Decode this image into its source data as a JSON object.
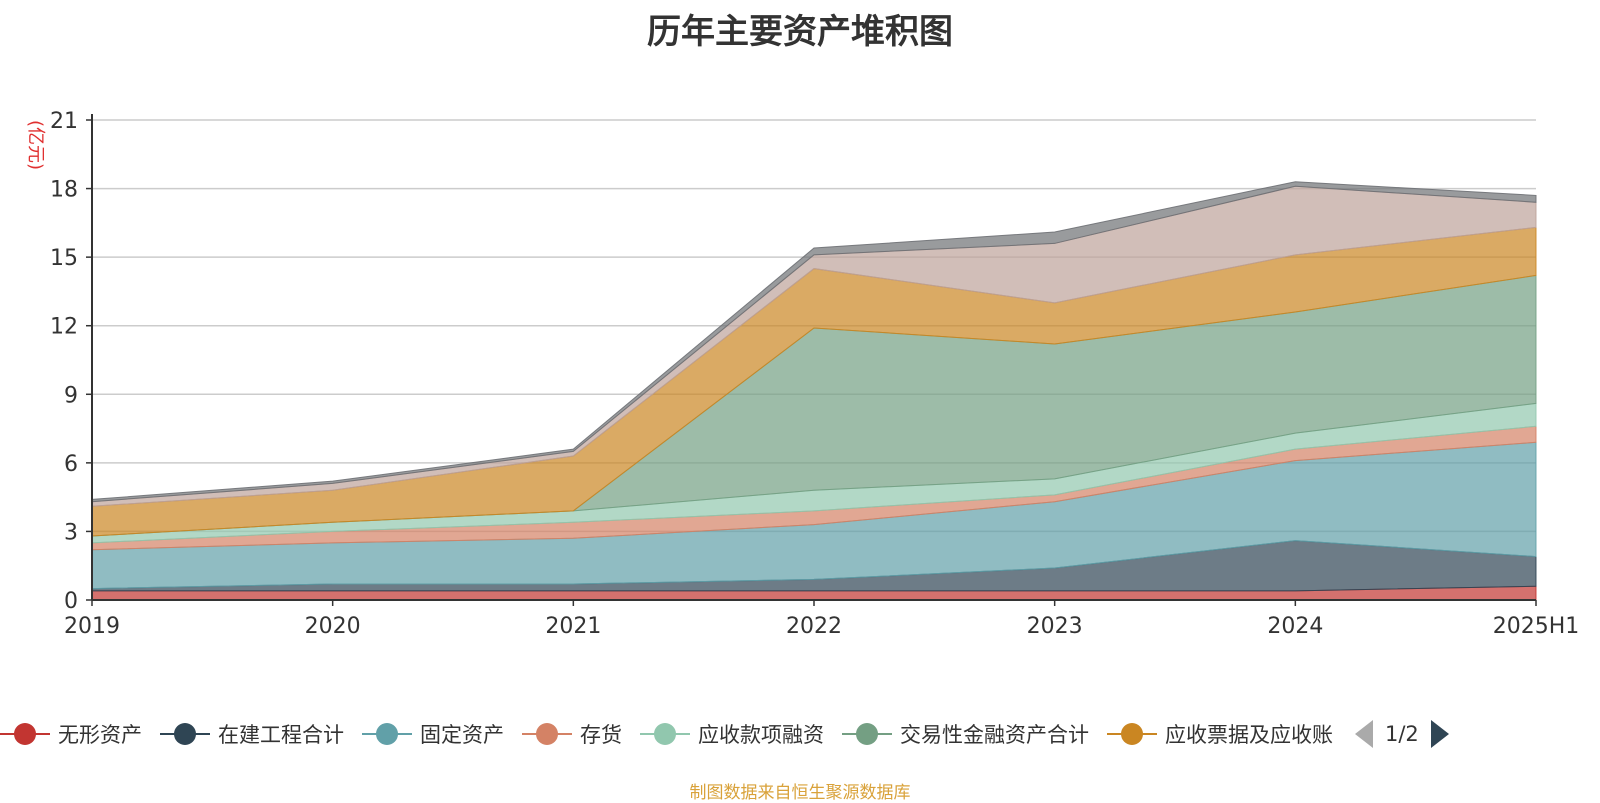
{
  "chart_data": {
    "type": "area",
    "title": "历年主要资产堆积图",
    "ylabel": "(亿元)",
    "xlabel": "",
    "ylim": [
      0,
      21
    ],
    "yticks": [
      "0",
      "3",
      "6",
      "9",
      "12",
      "15",
      "18",
      "21"
    ],
    "categories": [
      "2019",
      "2020",
      "2021",
      "2022",
      "2023",
      "2024",
      "2025H1"
    ],
    "stacked": true,
    "grid": true,
    "legend_position": "bottom",
    "series": [
      {
        "name": "无形资产",
        "color": "#c23531",
        "values": [
          0.4,
          0.4,
          0.4,
          0.4,
          0.4,
          0.4,
          0.6
        ]
      },
      {
        "name": "在建工程合计",
        "color": "#2f4554",
        "values": [
          0.1,
          0.3,
          0.3,
          0.5,
          1.0,
          2.2,
          1.3
        ]
      },
      {
        "name": "固定资产",
        "color": "#61a0a8",
        "values": [
          1.7,
          1.8,
          2.0,
          2.4,
          2.9,
          3.5,
          5.0
        ]
      },
      {
        "name": "存货",
        "color": "#d48265",
        "values": [
          0.3,
          0.5,
          0.7,
          0.6,
          0.3,
          0.5,
          0.7
        ]
      },
      {
        "name": "应收款项融资",
        "color": "#91c7ae",
        "values": [
          0.3,
          0.4,
          0.5,
          0.9,
          0.7,
          0.7,
          1.0
        ]
      },
      {
        "name": "交易性金融资产合计",
        "color": "#749f83",
        "values": [
          0.0,
          0.0,
          0.0,
          7.1,
          5.9,
          5.3,
          5.6
        ]
      },
      {
        "name": "应收票据及应收账",
        "color": "#ca8622",
        "values": [
          1.3,
          1.4,
          2.4,
          2.6,
          1.8,
          2.5,
          2.1
        ]
      },
      {
        "name": "",
        "color": "#bda29a",
        "values": [
          0.2,
          0.3,
          0.2,
          0.6,
          2.6,
          3.0,
          1.1
        ]
      },
      {
        "name": "",
        "color": "#6e7074",
        "values": [
          0.1,
          0.1,
          0.1,
          0.3,
          0.5,
          0.2,
          0.3
        ]
      }
    ]
  },
  "legend": {
    "pager_text": "1/2"
  },
  "footer": {
    "source": "制图数据来自恒生聚源数据库"
  }
}
